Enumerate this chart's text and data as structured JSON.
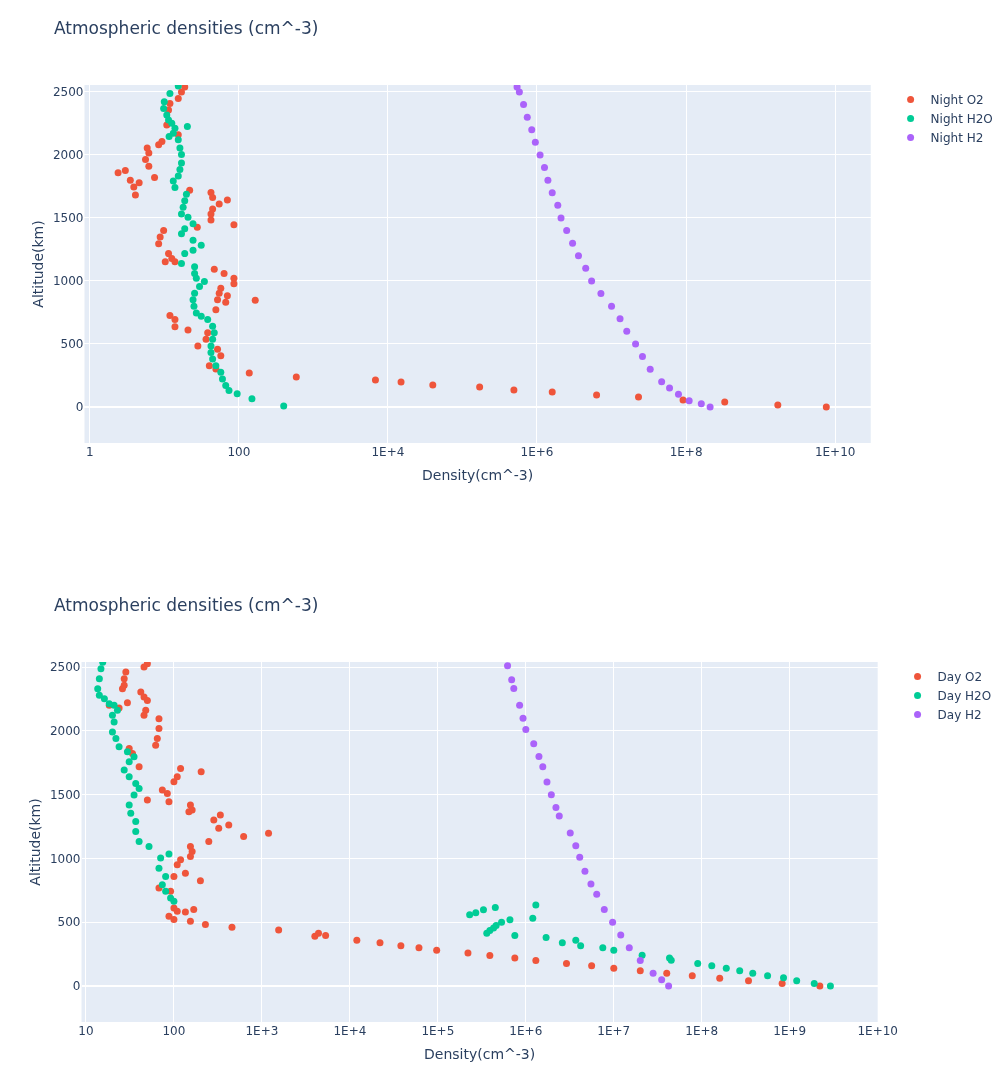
{
  "chart_data": [
    {
      "type": "scatter",
      "title": "Atmospheric densities (cm^-3)",
      "xlabel": "Density(cm^-3)",
      "ylabel": "Altitude(km)",
      "log": "x",
      "grid": true,
      "legend": "top right",
      "marker": "circle",
      "xlim": [
        0.85,
        30000000000.0
      ],
      "ylim": [
        -286,
        2555
      ],
      "xticks": [
        1,
        100,
        {
          "value": 10000.0,
          "label": "1E+4"
        },
        {
          "value": 1000000.0,
          "label": "1E+6"
        },
        {
          "value": 100000000.0,
          "label": "1E+8"
        },
        {
          "value": 10000000000.0,
          "label": "1E+10"
        }
      ],
      "yticks": [
        0,
        500,
        1000,
        1500,
        2000,
        2500
      ],
      "series": [
        {
          "name": "Night O2",
          "color": "#ef553b",
          "x": [
            18.8,
            17,
            15.4,
            11.9,
            11.4,
            10.8,
            15.4,
            9.3,
            8.4,
            5.9,
            6.2,
            5.6,
            6.2,
            7.4,
            2.4,
            3.0,
            3.5,
            4.6,
            3.9,
            4.1,
            21.9,
            42.3,
            44.5,
            70.2,
            54.5,
            44.5,
            42.3,
            42.3,
            27.7,
            85.9,
            9.8,
            8.8,
            8.4,
            11.4,
            12.6,
            10.3,
            13.9,
            46.8,
            63.4,
            85.9,
            85.9,
            57.3,
            54.5,
            70.2,
            51.8,
            49.2,
            66.7,
            166,
            11.9,
            13.9,
            13.9,
            20.8,
            28.2,
            36.3,
            38.2,
            51.8,
            57.3,
            40.2,
            49.2,
            138,
            590,
            6800,
            15000,
            40000,
            170000,
            490000,
            1600000,
            6300000,
            23000000,
            91000000,
            330000000,
            1700000000,
            7600000000
          ],
          "values": [
            2539,
            2500,
            2448,
            2409,
            2356,
            2238,
            2160,
            2107,
            2081,
            2055,
            2016,
            1964,
            1911,
            1820,
            1859,
            1877,
            1799,
            1780,
            1746,
            1683,
            1720,
            1702,
            1662,
            1642,
            1610,
            1571,
            1532,
            1484,
            1427,
            1445,
            1401,
            1348,
            1296,
            1217,
            1178,
            1152,
            1152,
            1092,
            1060,
            1021,
            977,
            943,
            903,
            882,
            851,
            772,
            830,
            846,
            725,
            694,
            636,
            610,
            484,
            537,
            589,
            458,
            406,
            327,
            301,
            270,
            238,
            214,
            198,
            175,
            159,
            135,
            119,
            95,
            79,
            56,
            40,
            16,
            0
          ]
        },
        {
          "name": "Night H2O",
          "color": "#00cc96",
          "x": [
            15.4,
            11.9,
            10,
            9.8,
            10.8,
            11.4,
            12.6,
            20.4,
            13.9,
            13.2,
            11.6,
            15.4,
            16.2,
            17,
            17,
            16.2,
            15.4,
            13.2,
            13.9,
            19.8,
            18.8,
            17.9,
            17,
            20.8,
            24.3,
            18.8,
            17,
            24.3,
            31.3,
            24.3,
            18.8,
            17,
            25.5,
            25.5,
            26.9,
            34.5,
            29.7,
            25.5,
            24.3,
            25,
            26.9,
            31.3,
            38.2,
            44.5,
            46.8,
            44.5,
            42.3,
            42.3,
            44.5,
            49.2,
            57.3,
            60.3,
            66.7,
            73.8,
            95,
            150,
            400
          ],
          "values": [
            2547,
            2487,
            2422,
            2369,
            2317,
            2278,
            2251,
            2225,
            2212,
            2173,
            2147,
            2121,
            2055,
            2003,
            1937,
            1885,
            1833,
            1793,
            1741,
            1689,
            1636,
            1584,
            1532,
            1505,
            1453,
            1414,
            1374,
            1322,
            1283,
            1244,
            1217,
            1139,
            1113,
            1060,
            1021,
            995,
            956,
            903,
            851,
            799,
            746,
            720,
            694,
            641,
            589,
            537,
            484,
            432,
            380,
            327,
            275,
            222,
            170,
            131,
            105,
            65,
            8
          ]
        },
        {
          "name": "Night H2",
          "color": "#ab63fa",
          "x": [
            210000000,
            160000000,
            110000000,
            79000000,
            60000000,
            47000000,
            33000000,
            26000000,
            21000000,
            16000000,
            13000000,
            10000000,
            7200000,
            5400000,
            4500000,
            3600000,
            3000000,
            2500000,
            2100000,
            1900000,
            1600000,
            1400000,
            1260000,
            1100000,
            950000,
            850000,
            740000,
            660000,
            580000,
            540000
          ],
          "values": [
            0,
            25,
            50,
            100,
            150,
            200,
            300,
            400,
            500,
            600,
            700,
            800,
            900,
            1000,
            1100,
            1200,
            1300,
            1400,
            1500,
            1600,
            1700,
            1800,
            1900,
            2000,
            2100,
            2200,
            2300,
            2400,
            2500,
            2540
          ]
        }
      ]
    },
    {
      "type": "scatter",
      "title": "Atmospheric densities (cm^-3)",
      "xlabel": "Density(cm^-3)",
      "ylabel": "Altitude(km)",
      "log": "x",
      "grid": true,
      "legend": "top right",
      "marker": "circle",
      "xlim": [
        8.9,
        10000000000.0
      ],
      "ylim": [
        -282,
        2540
      ],
      "xticks": [
        10,
        100,
        {
          "value": 1000.0,
          "label": "1E+3"
        },
        {
          "value": 10000.0,
          "label": "1E+4"
        },
        {
          "value": 100000.0,
          "label": "1E+5"
        },
        {
          "value": 1000000.0,
          "label": "1E+6"
        },
        {
          "value": 10000000.0,
          "label": "1E+7"
        },
        {
          "value": 100000000.0,
          "label": "1E+8"
        },
        {
          "value": 1000000000.0,
          "label": "1E+9"
        },
        {
          "value": 10000000000.0,
          "label": "1E+10"
        }
      ],
      "yticks": [
        0,
        500,
        1000,
        1500,
        2000,
        2500
      ],
      "series": [
        {
          "name": "Day O2",
          "color": "#ef553b",
          "x": [
            49.9,
            45.7,
            28.4,
            27.2,
            27.2,
            26,
            42,
            45.7,
            49.9,
            29.6,
            18.4,
            23.8,
            47.8,
            45.7,
            67.6,
            67.6,
            64.7,
            62,
            31,
            33.8,
            40.2,
            119,
            204,
            109,
            100,
            73.8,
            84.1,
            49.9,
            87.8,
            154,
            161,
            148,
            337,
            284,
            420,
            323,
            620,
            1190,
            249,
            154,
            161,
            154,
            119,
            109,
            135,
            100,
            200,
            67.6,
            91.6,
            100,
            87.8,
            109,
            100,
            135,
            168,
            154,
            228,
            457,
            1550,
            4000,
            4400,
            5300,
            12000,
            22000,
            38000,
            61000,
            97000,
            220000,
            390000,
            750000,
            1300000,
            2900000,
            5600000,
            10000000,
            20000000,
            40000000,
            78000000,
            160000000,
            340000000,
            820000000,
            2200000000
          ],
          "values": [
            2526,
            2500,
            2461,
            2409,
            2357,
            2331,
            2305,
            2265,
            2239,
            2221,
            2200,
            2180,
            2161,
            2122,
            2096,
            2018,
            1940,
            1888,
            1862,
            1823,
            1719,
            1706,
            1680,
            1641,
            1601,
            1536,
            1510,
            1458,
            1445,
            1419,
            1380,
            1367,
            1341,
            1302,
            1263,
            1237,
            1172,
            1198,
            1133,
            1094,
            1055,
            1016,
            990,
            950,
            885,
            859,
            825,
            768,
            742,
            612,
            547,
            586,
            521,
            581,
            599,
            508,
            482,
            461,
            440,
            391,
            413,
            397,
            358,
            339,
            316,
            300,
            281,
            258,
            239,
            219,
            200,
            177,
            158,
            139,
            119,
            100,
            81,
            61,
            42,
            19,
            0
          ]
        },
        {
          "name": "Day H2O",
          "color": "#00cc96",
          "x": [
            15.5,
            14.8,
            14.2,
            13.6,
            14.2,
            16.2,
            18.4,
            20.9,
            22.8,
            20,
            20.9,
            20,
            21.9,
            23.8,
            29.6,
            35.2,
            31,
            27.2,
            31,
            36.8,
            40.2,
            35.2,
            31,
            32.3,
            36.8,
            36.8,
            40.2,
            52.1,
            87.8,
            70.6,
            67.6,
            80.5,
            73.8,
            80.5,
            91.6,
            100,
            230000,
            270000,
            330000,
            450000,
            1300000,
            1200000,
            360000,
            390000,
            430000,
            460000,
            530000,
            660000,
            750000,
            1700000,
            2600000,
            3700000,
            4200000,
            7500000,
            10000000,
            21000000,
            43000000,
            45000000,
            90000000,
            130000000,
            190000000,
            270000000,
            380000000,
            560000000,
            850000000,
            1200000000,
            1900000000,
            2900000000
          ],
          "values": [
            2539,
            2487,
            2409,
            2331,
            2279,
            2252,
            2213,
            2200,
            2161,
            2122,
            2070,
            1992,
            1940,
            1875,
            1836,
            1797,
            1758,
            1693,
            1641,
            1588,
            1549,
            1497,
            1419,
            1354,
            1289,
            1211,
            1133,
            1094,
            1034,
            1003,
            924,
            859,
            794,
            742,
            690,
            664,
            558,
            574,
            597,
            616,
            636,
            532,
            413,
            436,
            455,
            474,
            500,
            519,
            397,
            381,
            339,
            358,
            316,
            300,
            281,
            242,
            219,
            203,
            177,
            158,
            139,
            119,
            100,
            81,
            65,
            42,
            19,
            0
          ]
        },
        {
          "name": "Day H2",
          "color": "#ab63fa",
          "x": [
            42000000,
            35000000,
            28000000,
            20000000,
            15000000,
            12000000,
            9700000,
            7800000,
            6400000,
            5500000,
            4700000,
            4100000,
            3700000,
            3200000,
            2400000,
            2200000,
            1950000,
            1740000,
            1560000,
            1410000,
            1230000,
            1000000,
            930000,
            850000,
            730000,
            690000,
            620000
          ],
          "values": [
            0,
            50,
            100,
            200,
            300,
            400,
            500,
            600,
            719,
            800,
            900,
            1010,
            1100,
            1200,
            1332,
            1400,
            1500,
            1600,
            1719,
            1800,
            1900,
            2010,
            2100,
            2200,
            2332,
            2400,
            2510
          ]
        }
      ]
    }
  ]
}
